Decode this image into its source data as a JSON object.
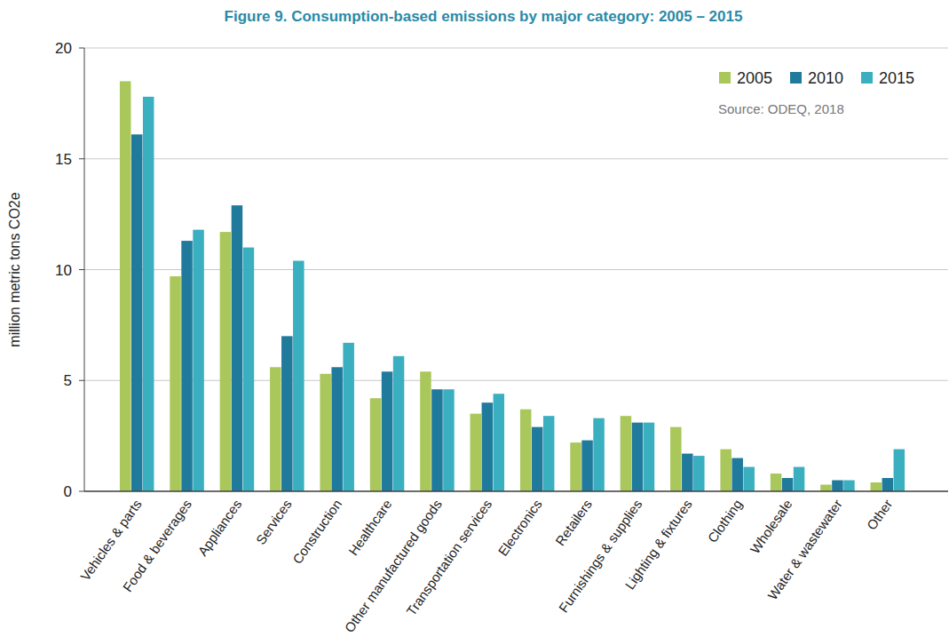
{
  "chart_data": {
    "type": "bar",
    "title": "Figure 9. Consumption-based emissions by major category: 2005 – 2015",
    "y_label": "million metric tons CO2e",
    "annotations": [
      "Source: ODEQ, 2018"
    ],
    "categories": [
      "Vehicles & parts",
      "Food & beverages",
      "Appliances",
      "Services",
      "Construction",
      "Healthcare",
      "Other manufactured goods",
      "Transportation services",
      "Electronics",
      "Retailers",
      "Furnishings & supplies",
      "Lighting & fixtures",
      "Clothing",
      "Wholesale",
      "Water & wastewater",
      "Other"
    ],
    "series": [
      {
        "name": "2005",
        "color": "#a9c75a",
        "values": [
          18.5,
          9.7,
          11.7,
          5.6,
          5.3,
          4.2,
          5.4,
          3.5,
          3.7,
          2.2,
          3.4,
          2.9,
          1.9,
          0.8,
          0.3,
          0.4
        ]
      },
      {
        "name": "2010",
        "color": "#1f7a9c",
        "values": [
          16.1,
          11.3,
          12.9,
          7.0,
          5.6,
          5.4,
          4.6,
          4.0,
          2.9,
          2.3,
          3.1,
          1.7,
          1.5,
          0.6,
          0.5,
          0.6
        ]
      },
      {
        "name": "2015",
        "color": "#3aafbf",
        "values": [
          17.8,
          11.8,
          11.0,
          10.4,
          6.7,
          6.1,
          4.6,
          4.4,
          3.4,
          3.3,
          3.1,
          1.6,
          1.1,
          1.1,
          0.5,
          1.9
        ]
      }
    ],
    "ylim": [
      0,
      20
    ],
    "yticks": [
      0,
      5,
      10,
      15,
      20
    ],
    "grid": true,
    "legend": "upper right"
  }
}
